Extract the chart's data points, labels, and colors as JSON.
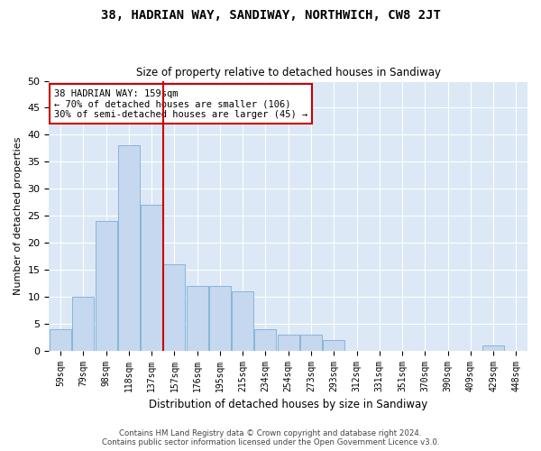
{
  "title": "38, HADRIAN WAY, SANDIWAY, NORTHWICH, CW8 2JT",
  "subtitle": "Size of property relative to detached houses in Sandiway",
  "xlabel": "Distribution of detached houses by size in Sandiway",
  "ylabel": "Number of detached properties",
  "categories": [
    "59sqm",
    "79sqm",
    "98sqm",
    "118sqm",
    "137sqm",
    "157sqm",
    "176sqm",
    "195sqm",
    "215sqm",
    "234sqm",
    "254sqm",
    "273sqm",
    "293sqm",
    "312sqm",
    "331sqm",
    "351sqm",
    "370sqm",
    "390sqm",
    "409sqm",
    "429sqm",
    "448sqm"
  ],
  "values": [
    4,
    10,
    24,
    38,
    27,
    16,
    12,
    12,
    11,
    4,
    3,
    3,
    2,
    0,
    0,
    0,
    0,
    0,
    0,
    1,
    0
  ],
  "bar_color": "#c5d8ef",
  "bar_edge_color": "#7aaed6",
  "property_label": "38 HADRIAN WAY: 159sqm",
  "annotation_line1": "← 70% of detached houses are smaller (106)",
  "annotation_line2": "30% of semi-detached houses are larger (45) →",
  "vline_position": 4.5,
  "vline_color": "#cc0000",
  "annotation_box_color": "#cc0000",
  "ylim": [
    0,
    50
  ],
  "yticks": [
    0,
    5,
    10,
    15,
    20,
    25,
    30,
    35,
    40,
    45,
    50
  ],
  "background_color": "#dce8f5",
  "fig_background": "#ffffff",
  "grid_color": "#ffffff",
  "footer_line1": "Contains HM Land Registry data © Crown copyright and database right 2024.",
  "footer_line2": "Contains public sector information licensed under the Open Government Licence v3.0."
}
